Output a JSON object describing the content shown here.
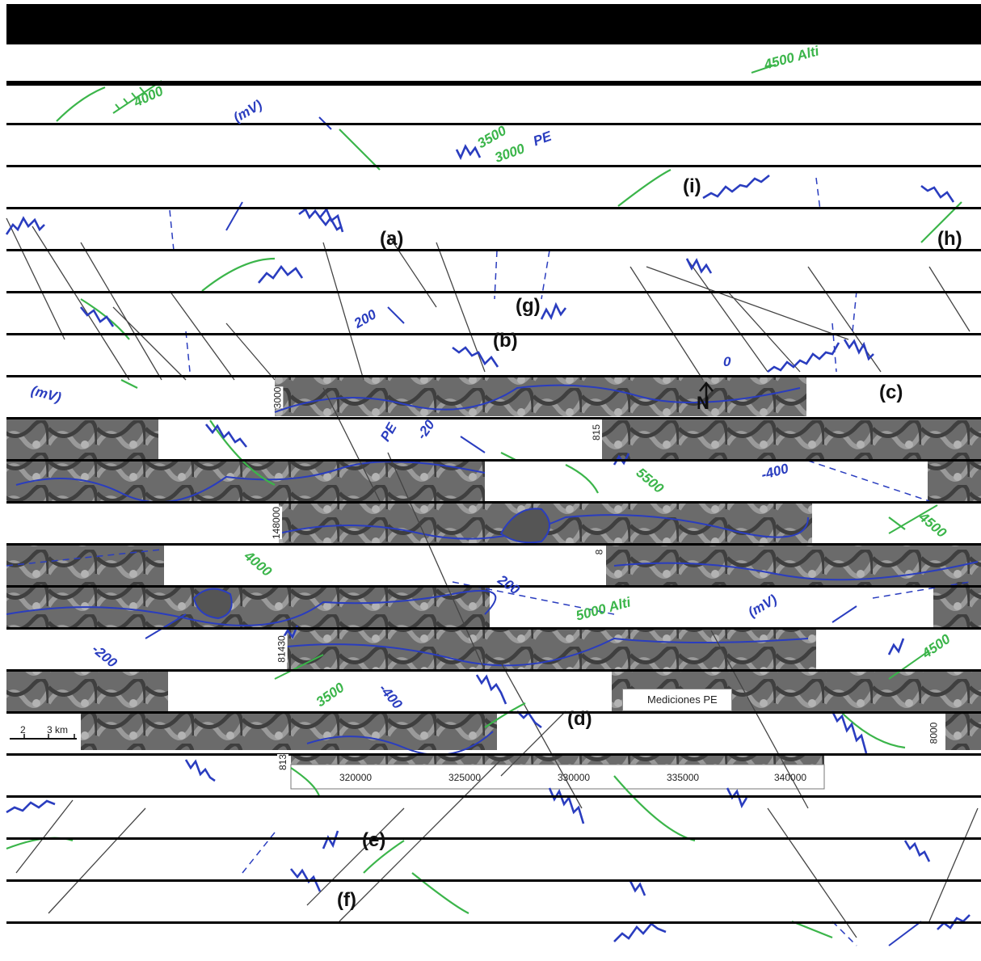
{
  "map": {
    "panel_labels": [
      "(a)",
      "(b)",
      "(c)",
      "(d)",
      "(e)",
      "(f)",
      "(g)",
      "(h)",
      "(i)"
    ],
    "altitude_labels": [
      "4000",
      "4500 Alti",
      "3500",
      "3000",
      "5500",
      "4500",
      "4000",
      "5000 Alti",
      "3500",
      "4500"
    ],
    "pe_labels": [
      "(mV)",
      "PE",
      "-20",
      "200",
      "0",
      "-400",
      "(mV)",
      "PE",
      "-200",
      "-400",
      "200",
      "(mV)"
    ],
    "easting_ticks": [
      "320000",
      "325000",
      "330000",
      "335000",
      "340000"
    ],
    "northing_ticks": [
      "3000",
      "815",
      "148000",
      "81430",
      "813",
      "8",
      "8000"
    ],
    "scale_bar": {
      "ticks": [
        "2",
        "3 km"
      ]
    },
    "north_arrow": "N",
    "legend": {
      "label": "Mediciones PE",
      "line_color": "#2a3dbf"
    },
    "colors": {
      "pe_profile": "#2a3dbf",
      "altitude_profile": "#3bb54a",
      "fault": "#444444",
      "band": "#000000"
    }
  }
}
